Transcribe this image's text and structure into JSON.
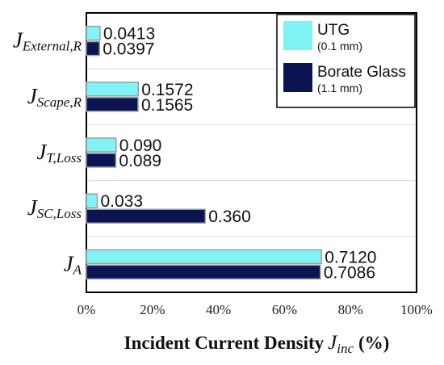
{
  "chart_data": {
    "type": "bar",
    "orientation": "horizontal",
    "categories": [
      {
        "main": "J",
        "sub": "External,R"
      },
      {
        "main": "J",
        "sub": "Scape,R"
      },
      {
        "main": "J",
        "sub": "T,Loss"
      },
      {
        "main": "J",
        "sub": "SC,Loss"
      },
      {
        "main": "J",
        "sub": "A"
      }
    ],
    "series": [
      {
        "name": "UTG",
        "note": "(0.1 mm)",
        "color": "#80f4f4",
        "values": [
          0.0413,
          0.1572,
          0.09,
          0.033,
          0.712
        ],
        "labels": [
          "0.0413",
          "0.1572",
          "0.090",
          "0.033",
          "0.7120"
        ]
      },
      {
        "name": "Borate Glass",
        "note": "(1.1 mm)",
        "color": "#0b1450",
        "values": [
          0.0397,
          0.1565,
          0.089,
          0.36,
          0.7086
        ],
        "labels": [
          "0.0397",
          "0.1565",
          "0.089",
          "0.360",
          "0.7086"
        ]
      }
    ],
    "xlim": [
      0,
      1
    ],
    "xticks": [
      {
        "value": 0,
        "label": "0%"
      },
      {
        "value": 0.2,
        "label": "20%"
      },
      {
        "value": 0.4,
        "label": "40%"
      },
      {
        "value": 0.6,
        "label": "60%"
      },
      {
        "value": 0.8,
        "label": "80%"
      },
      {
        "value": 1.0,
        "label": "100%"
      }
    ],
    "xlabel": {
      "text": "Incident Current Density",
      "var_main": "J",
      "var_sub": "inc",
      "unit": "(%)"
    },
    "ylabel": "",
    "title": "",
    "legend": "top-right",
    "grid": "horizontal"
  }
}
